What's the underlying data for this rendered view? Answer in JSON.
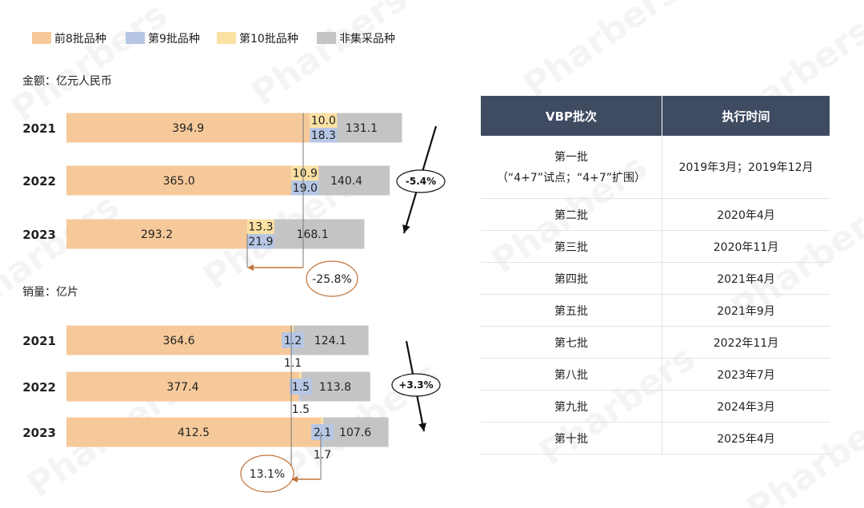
{
  "chart_data": [
    {
      "type": "bar",
      "stacked": true,
      "orientation": "horizontal",
      "title": "金额：亿元人民币",
      "categories": [
        "2021",
        "2022",
        "2023"
      ],
      "series": [
        {
          "name": "前8批品种",
          "color": "#f6c99a",
          "values": [
            394.9,
            365.0,
            293.2
          ]
        },
        {
          "name": "第9批品种",
          "color": "#b6c6e4",
          "values": [
            18.3,
            19.0,
            21.9
          ]
        },
        {
          "name": "第10批品种",
          "color": "#fbe1a3",
          "values": [
            10.0,
            10.9,
            13.3
          ]
        },
        {
          "name": "非集采品种",
          "color": "#c4c4c4",
          "values": [
            131.1,
            140.4,
            168.1
          ]
        }
      ],
      "labels": {
        "前8批品种": [
          "394.9",
          "365.0",
          "293.2"
        ],
        "第9批品种": [
          "18.3",
          "19.0",
          "21.9"
        ],
        "第10批品种": [
          "10.0",
          "10.9",
          "13.3"
        ],
        "非集采品种": [
          "131.1",
          "140.4",
          "168.1"
        ]
      },
      "annotations": [
        {
          "text": "-5.4%",
          "shape": "ellipse",
          "trend": "down"
        },
        {
          "text": "-25.8%",
          "shape": "ellipse"
        }
      ]
    },
    {
      "type": "bar",
      "stacked": true,
      "orientation": "horizontal",
      "title": "销量：亿片",
      "categories": [
        "2021",
        "2022",
        "2023"
      ],
      "series": [
        {
          "name": "前8批品种",
          "color": "#f6c99a",
          "values": [
            364.6,
            377.4,
            412.5
          ]
        },
        {
          "name": "第9批品种",
          "color": "#b6c6e4",
          "values": [
            1.2,
            1.5,
            2.1
          ]
        },
        {
          "name": "第10批品种",
          "color": "#fbe1a3",
          "values": [
            1.1,
            1.5,
            1.7
          ]
        },
        {
          "name": "非集采品种",
          "color": "#c4c4c4",
          "values": [
            124.1,
            113.8,
            107.6
          ]
        }
      ],
      "labels": {
        "前8批品种": [
          "364.6",
          "377.4",
          "412.5"
        ],
        "第9批品种": [
          "1.2",
          "1.5",
          "2.1"
        ],
        "第10批品种": [
          "1.1",
          "1.5",
          "1.7"
        ],
        "非集采品种": [
          "124.1",
          "113.8",
          "107.6"
        ]
      },
      "annotations": [
        {
          "text": "+3.3%",
          "shape": "ellipse",
          "trend": "down"
        },
        {
          "text": "13.1%",
          "shape": "ellipse"
        }
      ]
    }
  ],
  "legend": {
    "placement": "top-left",
    "items": [
      {
        "name": "前8批品种",
        "color": "#f6c99a"
      },
      {
        "name": "第9批品种",
        "color": "#b6c6e4"
      },
      {
        "name": "第10批品种",
        "color": "#fbe1a3"
      },
      {
        "name": "非集采品种",
        "color": "#c4c4c4"
      }
    ]
  },
  "table": {
    "headers": [
      "VBP批次",
      "执行时间"
    ],
    "rows": [
      {
        "batch": "第一批",
        "batch_note": "（“4+7”试点；“4+7”扩围）",
        "time": "2019年3月；2019年12月"
      },
      {
        "batch": "第二批",
        "time": "2020年4月"
      },
      {
        "batch": "第三批",
        "time": "2020年11月"
      },
      {
        "batch": "第四批",
        "time": "2021年4月"
      },
      {
        "batch": "第五批",
        "time": "2021年9月"
      },
      {
        "batch": "第七批",
        "time": "2022年11月"
      },
      {
        "batch": "第八批",
        "time": "2023年7月"
      },
      {
        "batch": "第九批",
        "time": "2024年3月"
      },
      {
        "batch": "第十批",
        "time": "2025年4月"
      }
    ]
  },
  "watermark": "Pharbers",
  "colors": {
    "accent_annotation": "#c0733a",
    "header_bg": "#3e4b61"
  }
}
